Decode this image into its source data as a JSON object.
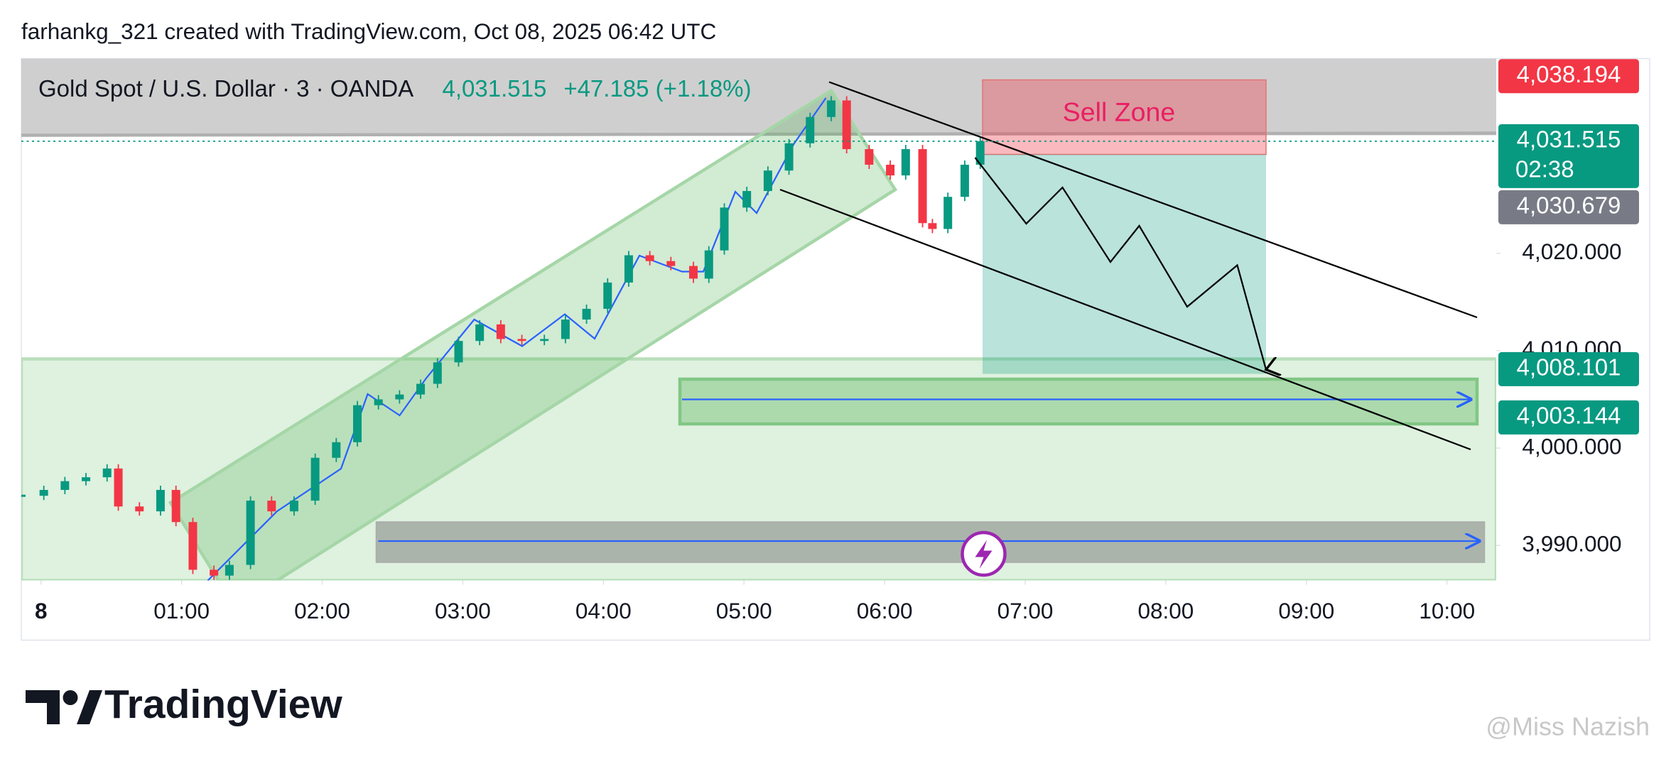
{
  "header": {
    "attribution": "farhankg_321 created with TradingView.com, Oct 08, 2025 06:42 UTC"
  },
  "chart_data": {
    "type": "candlestick",
    "title": "Gold Spot / U.S. Dollar · 3 · OANDA",
    "change": "+47.185 (+1.18%)",
    "annotations": [
      "Sell Zone"
    ],
    "up_color": "#089981",
    "down_color": "#f23645",
    "x": [
      -0.14,
      0.02,
      0.17,
      0.32,
      0.47,
      0.55,
      0.7,
      0.85,
      0.96,
      1.08,
      1.23,
      1.34,
      1.49,
      1.64,
      1.8,
      1.95,
      2.1,
      2.25,
      2.4,
      2.55,
      2.7,
      2.82,
      2.97,
      3.12,
      3.27,
      3.42,
      3.58,
      3.73,
      3.88,
      4.03,
      4.18,
      4.33,
      4.48,
      4.64,
      4.75,
      4.86,
      5.02,
      5.17,
      5.32,
      5.47,
      5.62,
      5.73,
      5.89,
      6.04,
      6.15,
      6.27,
      6.34,
      6.45,
      6.57,
      6.68
    ],
    "values": [
      3995.1,
      3995.7,
      3996.6,
      3997.0,
      3997.9,
      3994.0,
      3993.5,
      3995.7,
      3992.4,
      3987.5,
      3986.9,
      3988.0,
      3994.6,
      3993.5,
      3994.6,
      3999.0,
      4000.6,
      4004.4,
      4005.0,
      4005.5,
      4006.6,
      4008.8,
      4011.0,
      4012.7,
      4011.2,
      4011.0,
      4011.2,
      4013.2,
      4014.3,
      4017.0,
      4019.8,
      4019.2,
      4018.7,
      4017.4,
      4020.3,
      4024.7,
      4026.4,
      4028.5,
      4031.3,
      4034.0,
      4035.7,
      4030.7,
      4029.1,
      4028.0,
      4030.7,
      4023.1,
      4022.5,
      4025.8,
      4029.1,
      4031.515
    ],
    "xlim": [
      -0.14,
      10.35
    ],
    "xticks": [
      {
        "value": 0,
        "label": "8"
      },
      {
        "value": 1,
        "label": "01:00"
      },
      {
        "value": 2,
        "label": "02:00"
      },
      {
        "value": 3,
        "label": "03:00"
      },
      {
        "value": 4,
        "label": "04:00"
      },
      {
        "value": 5,
        "label": "05:00"
      },
      {
        "value": 6,
        "label": "06:00"
      },
      {
        "value": 7,
        "label": "07:00"
      },
      {
        "value": 8,
        "label": "08:00"
      },
      {
        "value": 9,
        "label": "09:00"
      },
      {
        "value": 10,
        "label": "10:00"
      }
    ],
    "ylim": [
      3986.4,
      4040
    ],
    "yticks": [
      {
        "value": 3990,
        "label": "3,990.000"
      },
      {
        "value": 4000,
        "label": "4,000.000"
      },
      {
        "value": 4010,
        "label": "4,010.000"
      },
      {
        "value": 4020,
        "label": "4,020.000"
      }
    ],
    "price_labels": [
      {
        "value": 4038.194,
        "label": "4,038.194",
        "color": "#f23645"
      },
      {
        "value": 4031.515,
        "label": "4,031.515",
        "countdown": "02:38",
        "color": "#089981"
      },
      {
        "value": 4030.679,
        "label": "4,030.679",
        "color": "#787b86"
      },
      {
        "value": 4008.101,
        "label": "4,008.101",
        "color": "#089981"
      },
      {
        "value": 4003.144,
        "label": "4,003.144",
        "color": "#089981"
      }
    ]
  },
  "footer": {
    "logo": "TradingView",
    "watermark": "@Miss Nazish"
  }
}
